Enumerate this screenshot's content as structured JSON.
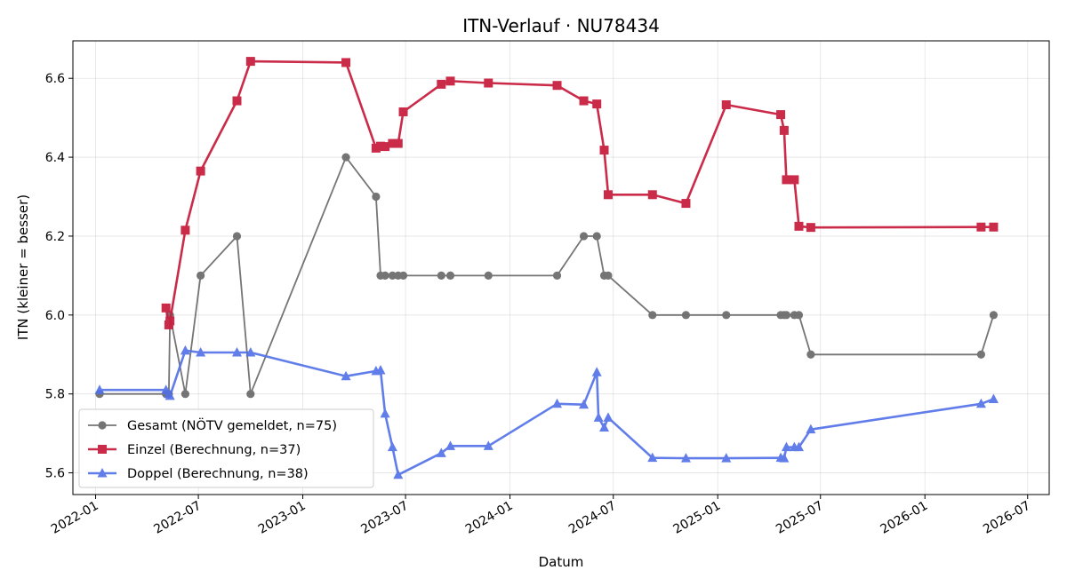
{
  "chart_data": {
    "type": "line",
    "title": "ITN-Verlauf · NU78434",
    "xlabel": "Datum",
    "ylabel": "ITN  (kleiner = besser)",
    "x_type": "date",
    "xlim": [
      "2021-11-22",
      "2026-08-08"
    ],
    "ylim": [
      5.545,
      6.695
    ],
    "x_ticks": [
      "2022-01-01",
      "2022-07-01",
      "2023-01-01",
      "2023-07-01",
      "2024-01-01",
      "2024-07-01",
      "2025-01-01",
      "2025-07-01",
      "2026-01-01",
      "2026-07-01"
    ],
    "x_tick_labels": [
      "2022-01",
      "2022-07",
      "2023-01",
      "2023-07",
      "2024-01",
      "2024-07",
      "2025-01",
      "2025-07",
      "2026-01",
      "2026-07"
    ],
    "y_ticks": [
      5.6,
      5.8,
      6.0,
      6.2,
      6.4,
      6.6
    ],
    "y_tick_labels": [
      "5.6",
      "5.8",
      "6.0",
      "6.2",
      "6.4",
      "6.6"
    ],
    "grid": true,
    "legend_position": "lower-left",
    "series": [
      {
        "name": "Gesamt (NÖTV gemeldet, n=75)",
        "color": "#474747",
        "marker": "circle",
        "x": [
          "2022-01-08",
          "2022-05-05",
          "2022-05-10",
          "2022-05-12",
          "2022-06-08",
          "2022-07-05",
          "2022-09-07",
          "2022-10-01",
          "2023-03-18",
          "2023-05-10",
          "2023-05-18",
          "2023-05-26",
          "2023-06-08",
          "2023-06-18",
          "2023-06-27",
          "2023-09-02",
          "2023-09-18",
          "2023-11-24",
          "2024-03-24",
          "2024-05-10",
          "2024-06-02",
          "2024-06-15",
          "2024-06-22",
          "2024-09-08",
          "2024-11-06",
          "2025-01-16",
          "2025-04-22",
          "2025-04-28",
          "2025-05-02",
          "2025-05-16",
          "2025-05-24",
          "2025-06-14",
          "2026-04-10",
          "2026-05-02"
        ],
        "y": [
          5.8,
          5.8,
          5.8,
          6.0,
          5.8,
          6.1,
          6.2,
          5.8,
          6.4,
          6.3,
          6.1,
          6.1,
          6.1,
          6.1,
          6.1,
          6.1,
          6.1,
          6.1,
          6.1,
          6.2,
          6.2,
          6.1,
          6.1,
          6.0,
          6.0,
          6.0,
          6.0,
          6.0,
          6.0,
          6.0,
          6.0,
          5.9,
          5.9,
          6.0
        ]
      },
      {
        "name": "Einzel (Berechnung, n=37)",
        "color": "#c8203f",
        "marker": "square",
        "x": [
          "2022-05-05",
          "2022-05-10",
          "2022-05-12",
          "2022-06-08",
          "2022-07-05",
          "2022-09-07",
          "2022-10-01",
          "2023-03-18",
          "2023-05-10",
          "2023-05-18",
          "2023-05-26",
          "2023-06-08",
          "2023-06-18",
          "2023-06-27",
          "2023-09-02",
          "2023-09-18",
          "2023-11-24",
          "2024-03-24",
          "2024-05-10",
          "2024-06-02",
          "2024-06-15",
          "2024-06-22",
          "2024-09-08",
          "2024-11-06",
          "2025-01-16",
          "2025-04-22",
          "2025-04-28",
          "2025-05-02",
          "2025-05-16",
          "2025-05-24",
          "2025-06-14",
          "2026-04-10",
          "2026-05-02"
        ],
        "y": [
          6.018,
          5.975,
          5.985,
          6.215,
          6.365,
          6.543,
          6.643,
          6.64,
          6.423,
          6.428,
          6.427,
          6.435,
          6.435,
          6.515,
          6.585,
          6.593,
          6.588,
          6.582,
          6.543,
          6.535,
          6.418,
          6.305,
          6.305,
          6.283,
          6.533,
          6.508,
          6.468,
          6.343,
          6.343,
          6.225,
          6.222,
          6.223,
          6.223
        ]
      },
      {
        "name": "Doppel (Berechnung, n=38)",
        "color": "#5070e8",
        "marker": "triangle",
        "x": [
          "2022-01-08",
          "2022-05-05",
          "2022-05-10",
          "2022-05-12",
          "2022-06-08",
          "2022-07-05",
          "2022-09-07",
          "2022-10-01",
          "2023-03-18",
          "2023-05-10",
          "2023-05-18",
          "2023-05-26",
          "2023-06-08",
          "2023-06-18",
          "2023-09-02",
          "2023-09-18",
          "2023-11-24",
          "2024-03-24",
          "2024-05-10",
          "2024-06-02",
          "2024-06-05",
          "2024-06-15",
          "2024-06-22",
          "2024-09-08",
          "2024-11-06",
          "2025-01-16",
          "2025-04-22",
          "2025-04-28",
          "2025-05-02",
          "2025-05-16",
          "2025-05-24",
          "2025-06-14",
          "2026-04-10",
          "2026-05-02"
        ],
        "y": [
          5.81,
          5.81,
          5.8,
          5.795,
          5.91,
          5.905,
          5.905,
          5.905,
          5.845,
          5.858,
          5.86,
          5.75,
          5.665,
          5.595,
          5.65,
          5.668,
          5.668,
          5.775,
          5.773,
          5.855,
          5.74,
          5.715,
          5.74,
          5.638,
          5.637,
          5.637,
          5.638,
          5.637,
          5.665,
          5.665,
          5.665,
          5.71,
          5.775,
          5.787
        ]
      }
    ]
  }
}
